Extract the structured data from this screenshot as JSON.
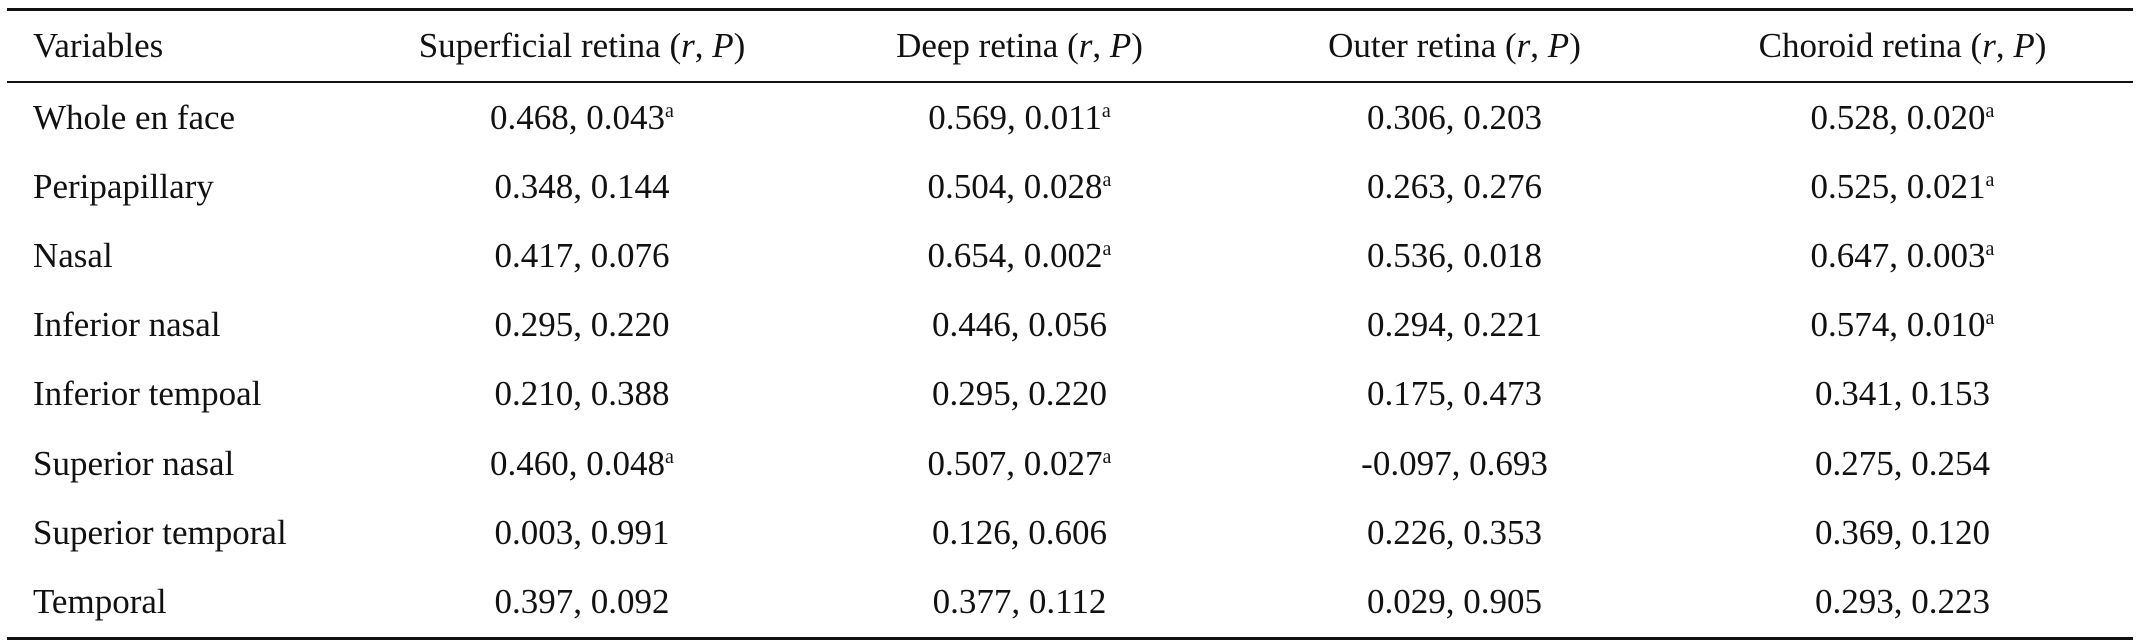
{
  "table": {
    "columns": [
      {
        "prefix": "Variables",
        "r": "",
        "sep": "",
        "p": "",
        "suffix": ""
      },
      {
        "prefix": "Superficial retina (",
        "r": "r",
        "sep": ", ",
        "p": "P",
        "suffix": ")"
      },
      {
        "prefix": "Deep retina (",
        "r": "r",
        "sep": ", ",
        "p": "P",
        "suffix": ")"
      },
      {
        "prefix": "Outer retina (",
        "r": "r",
        "sep": ", ",
        "p": "P",
        "suffix": ")"
      },
      {
        "prefix": "Choroid retina (",
        "r": "r",
        "sep": ", ",
        "p": "P",
        "suffix": ")"
      }
    ],
    "rows": [
      {
        "variable": "Whole en face",
        "cells": [
          {
            "value": "0.468, 0.043",
            "sup": "a"
          },
          {
            "value": "0.569, 0.011",
            "sup": "a"
          },
          {
            "value": "0.306, 0.203",
            "sup": ""
          },
          {
            "value": "0.528, 0.020",
            "sup": "a"
          }
        ]
      },
      {
        "variable": "Peripapillary",
        "cells": [
          {
            "value": "0.348, 0.144",
            "sup": ""
          },
          {
            "value": "0.504, 0.028",
            "sup": "a"
          },
          {
            "value": "0.263, 0.276",
            "sup": ""
          },
          {
            "value": "0.525, 0.021",
            "sup": "a"
          }
        ]
      },
      {
        "variable": "Nasal",
        "cells": [
          {
            "value": "0.417, 0.076",
            "sup": ""
          },
          {
            "value": "0.654, 0.002",
            "sup": "a"
          },
          {
            "value": "0.536, 0.018",
            "sup": ""
          },
          {
            "value": "0.647, 0.003",
            "sup": "a"
          }
        ]
      },
      {
        "variable": "Inferior nasal",
        "cells": [
          {
            "value": "0.295, 0.220",
            "sup": ""
          },
          {
            "value": "0.446, 0.056",
            "sup": ""
          },
          {
            "value": "0.294, 0.221",
            "sup": ""
          },
          {
            "value": "0.574, 0.010",
            "sup": "a"
          }
        ]
      },
      {
        "variable": "Inferior tempoal",
        "cells": [
          {
            "value": "0.210, 0.388",
            "sup": ""
          },
          {
            "value": "0.295, 0.220",
            "sup": ""
          },
          {
            "value": "0.175, 0.473",
            "sup": ""
          },
          {
            "value": "0.341, 0.153",
            "sup": ""
          }
        ]
      },
      {
        "variable": "Superior nasal",
        "cells": [
          {
            "value": "0.460, 0.048",
            "sup": "a"
          },
          {
            "value": "0.507, 0.027",
            "sup": "a"
          },
          {
            "value": "-0.097, 0.693",
            "sup": ""
          },
          {
            "value": "0.275, 0.254",
            "sup": ""
          }
        ]
      },
      {
        "variable": "Superior temporal",
        "cells": [
          {
            "value": "0.003, 0.991",
            "sup": ""
          },
          {
            "value": "0.126, 0.606",
            "sup": ""
          },
          {
            "value": "0.226, 0.353",
            "sup": ""
          },
          {
            "value": "0.369, 0.120",
            "sup": ""
          }
        ]
      },
      {
        "variable": "Temporal",
        "cells": [
          {
            "value": "0.397, 0.092",
            "sup": ""
          },
          {
            "value": "0.377, 0.112",
            "sup": ""
          },
          {
            "value": "0.029, 0.905",
            "sup": ""
          },
          {
            "value": "0.293, 0.223",
            "sup": ""
          }
        ]
      }
    ]
  }
}
